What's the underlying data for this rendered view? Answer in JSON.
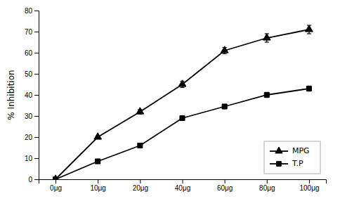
{
  "chart_data": {
    "type": "line",
    "ylabel": "% Inhibition",
    "categories": [
      "0μg",
      "10μg",
      "20μg",
      "40μg",
      "60μg",
      "80μg",
      "100μg"
    ],
    "series": [
      {
        "name": "MPG",
        "color": "#000000",
        "marker": "triangle",
        "line_style": "solid",
        "values": [
          0,
          20,
          32,
          45,
          61,
          67,
          71
        ],
        "errors": [
          0,
          0.7,
          1.0,
          1.5,
          1.5,
          2.0,
          2.0
        ]
      },
      {
        "name": "T.P",
        "color": "#000000",
        "marker": "square",
        "line_style": "solid",
        "values": [
          0,
          8.5,
          16,
          29,
          34.5,
          40,
          43
        ],
        "errors": [
          0,
          0.7,
          0.8,
          1.0,
          1.0,
          1.2,
          1.2
        ]
      }
    ],
    "ylim": [
      0,
      80
    ],
    "yticks": [
      0,
      10,
      20,
      30,
      40,
      50,
      60,
      70,
      80
    ],
    "legend": "lower right",
    "grid": false
  }
}
